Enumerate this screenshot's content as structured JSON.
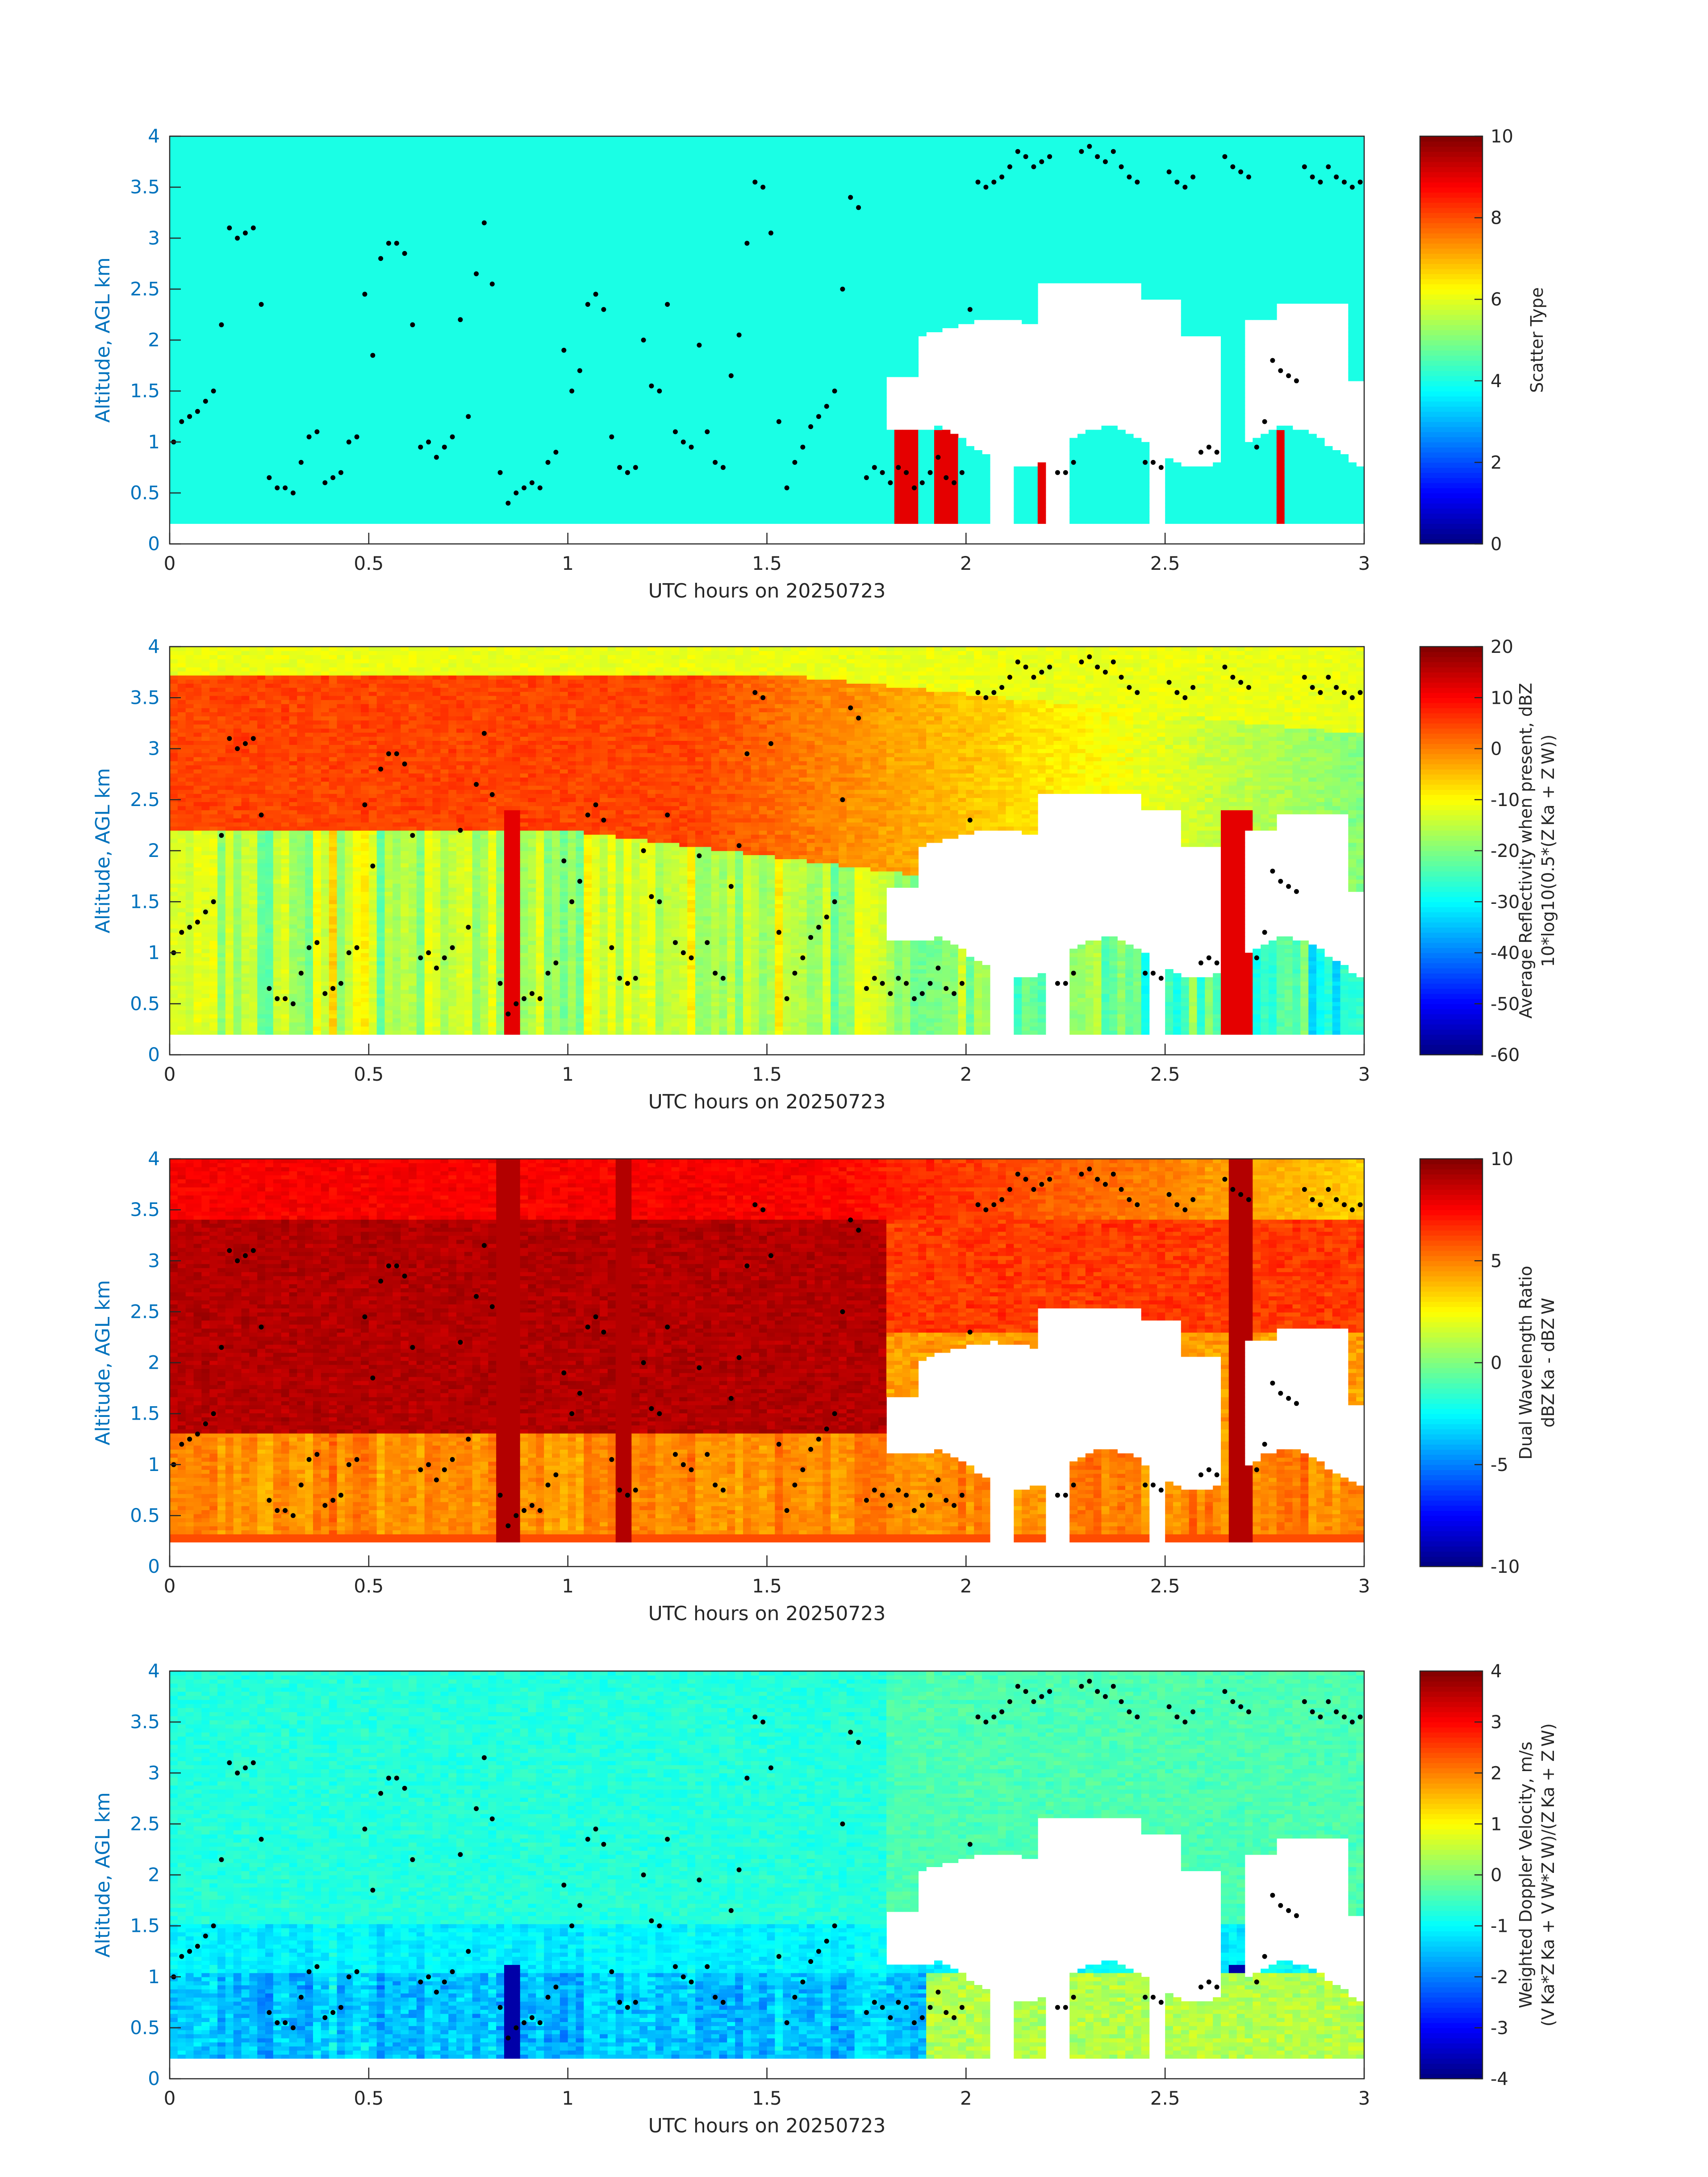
{
  "colors": {
    "axis_label": "#0072BD",
    "tick_text": "#262626",
    "background_fill": "#ffffff"
  },
  "colormap": "jet",
  "chart_data": [
    {
      "type": "heatmap",
      "xlabel": "UTC hours on 20250723",
      "ylabel": "Altitude, AGL km",
      "xlim": [
        0,
        3
      ],
      "ylim": [
        0,
        4
      ],
      "xticks": [
        "0",
        "0.5",
        "1",
        "1.5",
        "2",
        "2.5",
        "3"
      ],
      "yticks": [
        "0",
        "0.5",
        "1",
        "1.5",
        "2",
        "2.5",
        "3",
        "3.5",
        "4"
      ],
      "grid": false,
      "colorbar": {
        "label_lines": [
          "Scatter Type"
        ],
        "range": [
          0,
          10
        ],
        "ticks": [
          "0",
          "2",
          "4",
          "6",
          "8",
          "10"
        ]
      },
      "field": "scatter",
      "field_description": "mostly uniform value ~4 (cyan); value ~9 columns (orange-red) below 1.1 km after 1.8 h"
    },
    {
      "type": "heatmap",
      "xlabel": "UTC hours on 20250723",
      "ylabel": "Altitude, AGL km",
      "xlim": [
        0,
        3
      ],
      "ylim": [
        0,
        4
      ],
      "xticks": [
        "0",
        "0.5",
        "1",
        "1.5",
        "2",
        "2.5",
        "3"
      ],
      "yticks": [
        "0",
        "0.5",
        "1",
        "1.5",
        "2",
        "2.5",
        "3",
        "3.5",
        "4"
      ],
      "grid": false,
      "colorbar": {
        "label_lines": [
          "Average Reflectivity when present, dBZ",
          "10*log10(0.5*(Z Ka + Z W))"
        ],
        "range": [
          -60,
          20
        ],
        "ticks": [
          "-60",
          "-50",
          "-40",
          "-30",
          "-20",
          "-10",
          "0",
          "10",
          "20"
        ]
      },
      "field": "reflectivity"
    },
    {
      "type": "heatmap",
      "xlabel": "UTC hours on 20250723",
      "ylabel": "Altitude, AGL km",
      "xlim": [
        0,
        3
      ],
      "ylim": [
        0,
        4
      ],
      "xticks": [
        "0",
        "0.5",
        "1",
        "1.5",
        "2",
        "2.5",
        "3"
      ],
      "yticks": [
        "0",
        "0.5",
        "1",
        "1.5",
        "2",
        "2.5",
        "3",
        "3.5",
        "4"
      ],
      "grid": false,
      "colorbar": {
        "label_lines": [
          "Dual Wavelength Ratio",
          "dBZ Ka - dBZ W"
        ],
        "range": [
          -10,
          10
        ],
        "ticks": [
          "-10",
          "-5",
          "0",
          "5",
          "10"
        ]
      },
      "field": "dwr"
    },
    {
      "type": "heatmap",
      "xlabel": "UTC hours on 20250723",
      "ylabel": "Altitude, AGL km",
      "xlim": [
        0,
        3
      ],
      "ylim": [
        0,
        4
      ],
      "xticks": [
        "0",
        "0.5",
        "1",
        "1.5",
        "2",
        "2.5",
        "3"
      ],
      "yticks": [
        "0",
        "0.5",
        "1",
        "1.5",
        "2",
        "2.5",
        "3",
        "3.5",
        "4"
      ],
      "grid": false,
      "colorbar": {
        "label_lines": [
          "Weighted Doppler Velocity, m/s",
          "(V Ka*Z Ka + V W*Z W)/(Z Ka + Z W)"
        ],
        "range": [
          -4,
          4
        ],
        "ticks": [
          "-4",
          "-3",
          "-2",
          "-1",
          "0",
          "1",
          "2",
          "3",
          "4"
        ]
      },
      "field": "velocity"
    }
  ],
  "overlay_points": {
    "description": "black dots, same in every panel",
    "x": [
      0.01,
      0.03,
      0.05,
      0.07,
      0.09,
      0.11,
      0.13,
      0.15,
      0.17,
      0.19,
      0.21,
      0.23,
      0.25,
      0.27,
      0.29,
      0.31,
      0.33,
      0.35,
      0.37,
      0.39,
      0.41,
      0.43,
      0.45,
      0.47,
      0.49,
      0.51,
      0.53,
      0.55,
      0.57,
      0.59,
      0.61,
      0.63,
      0.65,
      0.67,
      0.69,
      0.71,
      0.73,
      0.75,
      0.77,
      0.79,
      0.81,
      0.83,
      0.85,
      0.87,
      0.89,
      0.91,
      0.93,
      0.95,
      0.97,
      0.99,
      1.01,
      1.03,
      1.05,
      1.07,
      1.09,
      1.11,
      1.13,
      1.15,
      1.17,
      1.19,
      1.21,
      1.23,
      1.25,
      1.27,
      1.29,
      1.31,
      1.33,
      1.35,
      1.37,
      1.39,
      1.41,
      1.43,
      1.45,
      1.47,
      1.49,
      1.51,
      1.53,
      1.55,
      1.57,
      1.59,
      1.61,
      1.63,
      1.65,
      1.67,
      1.69,
      1.71,
      1.73,
      1.75,
      1.77,
      1.79,
      1.81,
      1.83,
      1.85,
      1.87,
      1.89,
      1.91,
      1.93,
      1.95,
      1.97,
      1.99,
      2.01,
      2.03,
      2.05,
      2.07,
      2.09,
      2.11,
      2.13,
      2.15,
      2.17,
      2.19,
      2.21,
      2.23,
      2.25,
      2.27,
      2.29,
      2.31,
      2.33,
      2.35,
      2.37,
      2.39,
      2.41,
      2.43,
      2.45,
      2.47,
      2.49,
      2.51,
      2.53,
      2.55,
      2.57,
      2.59,
      2.61,
      2.63,
      2.65,
      2.67,
      2.69,
      2.71,
      2.73,
      2.75,
      2.77,
      2.79,
      2.81,
      2.83,
      2.85,
      2.87,
      2.89,
      2.91,
      2.93,
      2.95,
      2.97,
      2.99
    ],
    "y": [
      1.0,
      1.2,
      1.25,
      1.3,
      1.4,
      1.5,
      2.15,
      3.1,
      3.0,
      3.05,
      3.1,
      2.35,
      0.65,
      0.55,
      0.55,
      0.5,
      0.8,
      1.05,
      1.1,
      0.6,
      0.65,
      0.7,
      1.0,
      1.05,
      2.45,
      1.85,
      2.8,
      2.95,
      2.95,
      2.85,
      2.15,
      0.95,
      1.0,
      0.85,
      0.95,
      1.05,
      2.2,
      1.25,
      2.65,
      3.15,
      2.55,
      0.7,
      0.4,
      0.5,
      0.55,
      0.6,
      0.55,
      0.8,
      0.9,
      1.9,
      1.5,
      1.7,
      2.35,
      2.45,
      2.3,
      1.05,
      0.75,
      0.7,
      0.75,
      2.0,
      1.55,
      1.5,
      2.35,
      1.1,
      1.0,
      0.95,
      1.95,
      1.1,
      0.8,
      0.75,
      1.65,
      2.05,
      2.95,
      3.55,
      3.5,
      3.05,
      1.2,
      0.55,
      0.8,
      0.95,
      1.15,
      1.25,
      1.35,
      1.5,
      2.5,
      3.4,
      3.3,
      0.65,
      0.75,
      0.7,
      0.6,
      0.75,
      0.7,
      0.55,
      0.6,
      0.7,
      0.85,
      0.65,
      0.6,
      0.7,
      2.3,
      3.55,
      3.5,
      3.55,
      3.6,
      3.7,
      3.85,
      3.8,
      3.7,
      3.75,
      3.8,
      0.7,
      0.7,
      0.8,
      3.85,
      3.9,
      3.8,
      3.75,
      3.85,
      3.7,
      3.6,
      3.55,
      0.8,
      0.8,
      0.75,
      3.65,
      3.55,
      3.5,
      3.6,
      0.9,
      0.95,
      0.9,
      3.8,
      3.7,
      3.65,
      3.6,
      0.95,
      1.2,
      1.8,
      1.7,
      1.65,
      1.6,
      3.7,
      3.6,
      3.55,
      3.7,
      3.6,
      3.55,
      3.5,
      3.55
    ]
  }
}
